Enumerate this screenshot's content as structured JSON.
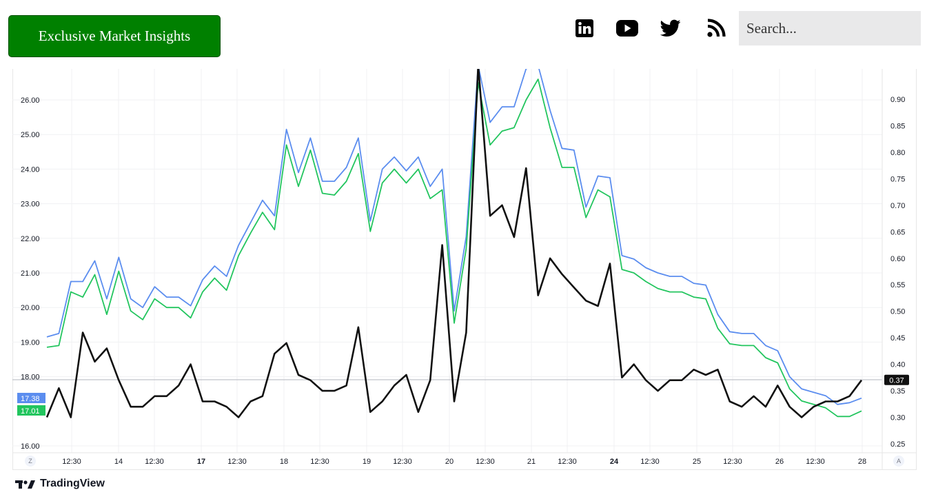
{
  "header": {
    "cta_label": "Exclusive Market Insights",
    "search_placeholder": "Search..."
  },
  "social": [
    "linkedin-icon",
    "youtube-icon",
    "twitter-icon",
    "rss-icon"
  ],
  "footer": {
    "brand": "TradingView"
  },
  "colors": {
    "cta": "#008000",
    "blue_series": "#5b8def",
    "green_series": "#22c55e",
    "black_series": "#111111"
  },
  "chart_data": {
    "type": "line",
    "x_tick_labels": [
      "12:30",
      "14",
      "12:30",
      "17",
      "12:30",
      "18",
      "12:30",
      "19",
      "12:30",
      "20",
      "12:30",
      "21",
      "12:30",
      "24",
      "12:30",
      "25",
      "12:30",
      "26",
      "12:30",
      "28"
    ],
    "x_bold_ticks": [
      "17",
      "24"
    ],
    "left_axis": {
      "ticks": [
        "16.00",
        "18.00",
        "19.00",
        "20.00",
        "21.00",
        "22.00",
        "23.00",
        "24.00",
        "25.00",
        "26.00"
      ],
      "ylim": [
        15.8,
        26.9
      ]
    },
    "right_axis": {
      "ticks": [
        "0.25",
        "0.30",
        "0.35",
        "0.40",
        "0.45",
        "0.50",
        "0.55",
        "0.60",
        "0.65",
        "0.70",
        "0.75",
        "0.80",
        "0.85",
        "0.90"
      ],
      "ylim": [
        0.245,
        0.965
      ]
    },
    "axis_corner_left": "Z",
    "axis_corner_right": "A",
    "series": [
      {
        "axis": "left",
        "color": "#5b8def",
        "values": [
          19.15,
          19.25,
          20.75,
          20.75,
          21.35,
          20.25,
          21.45,
          20.25,
          20.0,
          20.6,
          20.3,
          20.3,
          20.05,
          20.8,
          21.2,
          20.9,
          21.8,
          22.45,
          23.1,
          22.65,
          25.15,
          23.9,
          24.9,
          23.65,
          23.65,
          24.05,
          24.9,
          22.5,
          24.0,
          24.35,
          23.95,
          24.35,
          23.5,
          24.0,
          19.9,
          22.05,
          27.0,
          25.35,
          25.8,
          25.8,
          26.9,
          27.0,
          25.7,
          24.6,
          24.55,
          22.9,
          23.8,
          23.75,
          21.5,
          21.4,
          21.15,
          21.0,
          20.9,
          20.9,
          20.7,
          20.65,
          19.8,
          19.3,
          19.25,
          19.25,
          18.9,
          18.75,
          18.0,
          17.65,
          17.55,
          17.45,
          17.2,
          17.25,
          17.38
        ],
        "last_label": "17.38"
      },
      {
        "axis": "left",
        "color": "#22c55e",
        "values": [
          18.85,
          18.9,
          20.45,
          20.3,
          20.95,
          19.8,
          21.05,
          19.9,
          19.65,
          20.25,
          20.0,
          20.0,
          19.7,
          20.45,
          20.85,
          20.5,
          21.5,
          22.15,
          22.75,
          22.25,
          24.7,
          23.5,
          24.55,
          23.3,
          23.25,
          23.65,
          24.45,
          22.2,
          23.6,
          24.0,
          23.6,
          24.0,
          23.15,
          23.4,
          19.55,
          21.7,
          26.5,
          24.7,
          25.1,
          25.2,
          26.0,
          26.6,
          25.2,
          24.05,
          24.05,
          22.6,
          23.4,
          23.2,
          21.1,
          21.0,
          20.75,
          20.55,
          20.45,
          20.45,
          20.3,
          20.25,
          19.4,
          18.95,
          18.9,
          18.9,
          18.55,
          18.4,
          17.65,
          17.3,
          17.2,
          17.1,
          16.85,
          16.85,
          17.01
        ],
        "last_label": "17.01"
      },
      {
        "axis": "right",
        "color": "#111111",
        "values": [
          0.3,
          0.355,
          0.3,
          0.46,
          0.405,
          0.43,
          0.37,
          0.32,
          0.32,
          0.34,
          0.34,
          0.36,
          0.4,
          0.33,
          0.33,
          0.32,
          0.3,
          0.33,
          0.34,
          0.42,
          0.44,
          0.38,
          0.37,
          0.35,
          0.35,
          0.36,
          0.47,
          0.31,
          0.33,
          0.36,
          0.38,
          0.31,
          0.37,
          0.625,
          0.33,
          0.46,
          0.965,
          0.68,
          0.7,
          0.64,
          0.77,
          0.53,
          0.6,
          0.57,
          0.545,
          0.52,
          0.51,
          0.59,
          0.375,
          0.4,
          0.37,
          0.35,
          0.37,
          0.37,
          0.39,
          0.38,
          0.39,
          0.33,
          0.32,
          0.34,
          0.32,
          0.36,
          0.32,
          0.3,
          0.32,
          0.33,
          0.33,
          0.34,
          0.37
        ],
        "last_label": "0.37"
      }
    ],
    "current_line_value": 0.37
  }
}
